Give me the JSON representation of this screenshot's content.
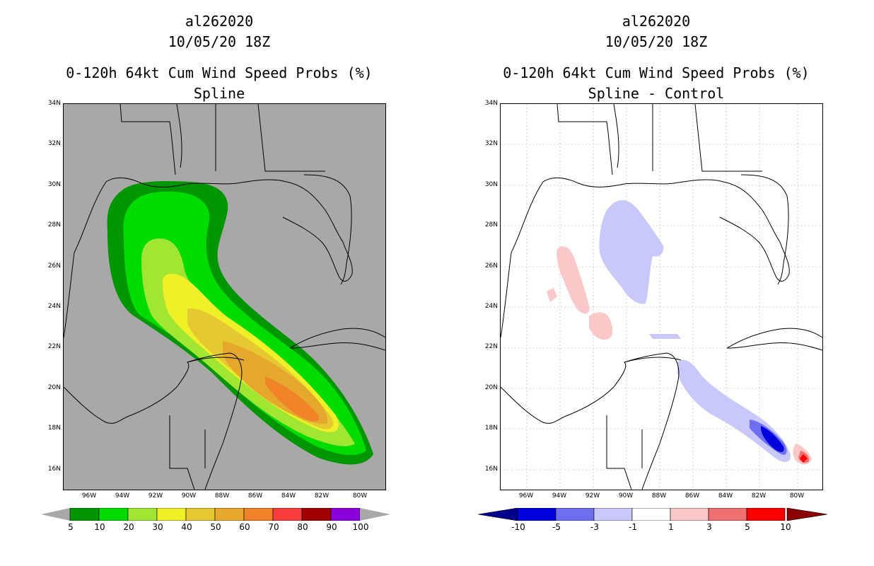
{
  "left_panel": {
    "title_line1": "al262020",
    "title_line2": "10/05/20 18Z",
    "title_line3": "0-120h 64kt Cum Wind Speed Probs (%)",
    "title_line4": "Spline",
    "colorbar_labels": [
      "5",
      "10",
      "20",
      "30",
      "40",
      "50",
      "60",
      "70",
      "80",
      "90",
      "100"
    ],
    "colorbar_colors": [
      "#009600",
      "#00dc00",
      "#a0e632",
      "#f0f028",
      "#e6c832",
      "#e6a82c",
      "#f08228",
      "#fa3c3c",
      "#a00000",
      "#8c00dc"
    ],
    "background_color": "#a8a8a8"
  },
  "right_panel": {
    "title_line1": "al262020",
    "title_line2": "10/05/20 18Z",
    "title_line3": "0-120h 64kt Cum Wind Speed Probs (%)",
    "title_line4": "Spline - Control",
    "colorbar_labels": [
      "-10",
      "-5",
      "-3",
      "-1",
      "1",
      "3",
      "5",
      "10"
    ],
    "colorbar_colors": [
      "#0000dc",
      "#6e6ef0",
      "#c8c8fa",
      "#ffffff",
      "#fac8c8",
      "#f07070",
      "#fa0000"
    ],
    "end_colors": [
      "#00008c",
      "#8c0000"
    ]
  },
  "axes": {
    "lat_labels": [
      "34N",
      "32N",
      "30N",
      "28N",
      "26N",
      "24N",
      "22N",
      "20N",
      "18N",
      "16N"
    ],
    "lon_labels": [
      "96W",
      "94W",
      "92W",
      "90W",
      "88W",
      "86W",
      "84W",
      "82W",
      "80W"
    ]
  }
}
